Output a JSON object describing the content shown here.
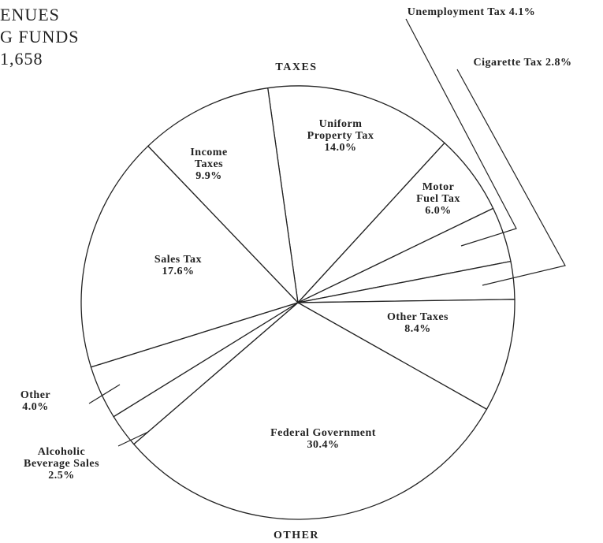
{
  "chart_data": {
    "type": "pie",
    "title_lines": [
      "ENUES",
      "G FUNDS",
      "1,658"
    ],
    "annotations": [
      "TAXES",
      "OTHER"
    ],
    "categories": [
      "Uniform Property Tax",
      "Motor Fuel Tax",
      "Unemployment Tax",
      "Cigarette Tax",
      "Other Taxes",
      "Federal Government",
      "Alcoholic Beverage Sales",
      "Other",
      "Sales Tax",
      "Income Taxes"
    ],
    "values": [
      14.0,
      6.0,
      4.1,
      2.8,
      8.4,
      30.4,
      2.5,
      4.0,
      17.6,
      9.9
    ],
    "value_labels": [
      "14.0%",
      "6.0%",
      "4.1%",
      "2.8%",
      "8.4%",
      "30.4%",
      "2.5%",
      "4.0%",
      "17.6%",
      "9.9%"
    ],
    "color": "#ffffff"
  }
}
